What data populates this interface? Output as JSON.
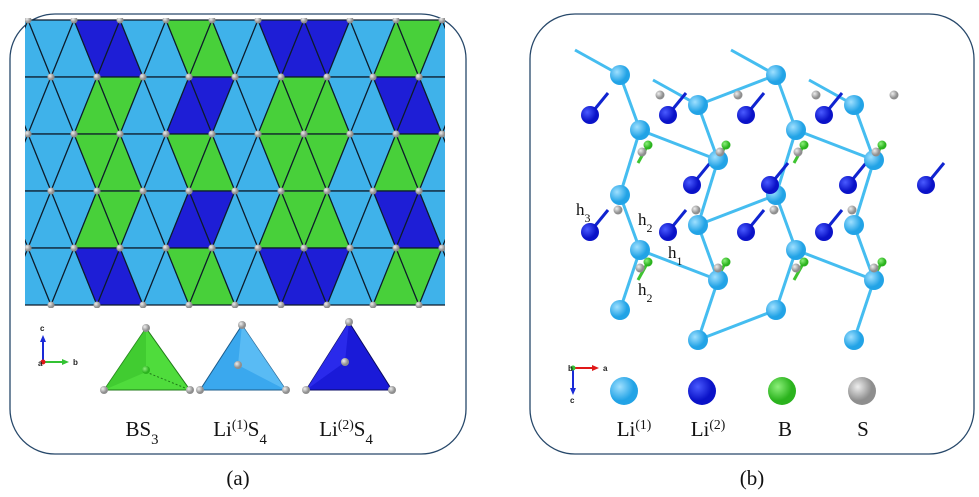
{
  "panel_a": {
    "label": "(a)",
    "axes": {
      "vertical": "c",
      "horizontal": "b",
      "origin": "a"
    },
    "legend": [
      [
        {
          "text": "BS"
        },
        {
          "text": "3",
          "style": "sub"
        }
      ],
      [
        {
          "text": "Li"
        },
        {
          "text": "(1)",
          "style": "sup"
        },
        {
          "text": "S"
        },
        {
          "text": "4",
          "style": "sub"
        }
      ],
      [
        {
          "text": "Li"
        },
        {
          "text": "(2)",
          "style": "sup"
        },
        {
          "text": "S"
        },
        {
          "text": "4",
          "style": "sub"
        }
      ]
    ]
  },
  "panel_b": {
    "label": "(b)",
    "axes": {
      "origin": "b",
      "horizontal": "a",
      "vertical": "c"
    },
    "annotations": [
      [
        {
          "text": "h"
        },
        {
          "text": "3",
          "style": "sub"
        }
      ],
      [
        {
          "text": "h"
        },
        {
          "text": "2",
          "style": "sub"
        }
      ],
      [
        {
          "text": "h"
        },
        {
          "text": "1",
          "style": "sub"
        }
      ],
      [
        {
          "text": "h"
        },
        {
          "text": "2",
          "style": "sub"
        }
      ]
    ],
    "legend": [
      [
        {
          "text": "Li"
        },
        {
          "text": "(1)",
          "style": "sup"
        }
      ],
      [
        {
          "text": "Li"
        },
        {
          "text": "(2)",
          "style": "sup"
        }
      ],
      [
        {
          "text": "B"
        }
      ],
      [
        {
          "text": "S"
        }
      ]
    ]
  }
}
